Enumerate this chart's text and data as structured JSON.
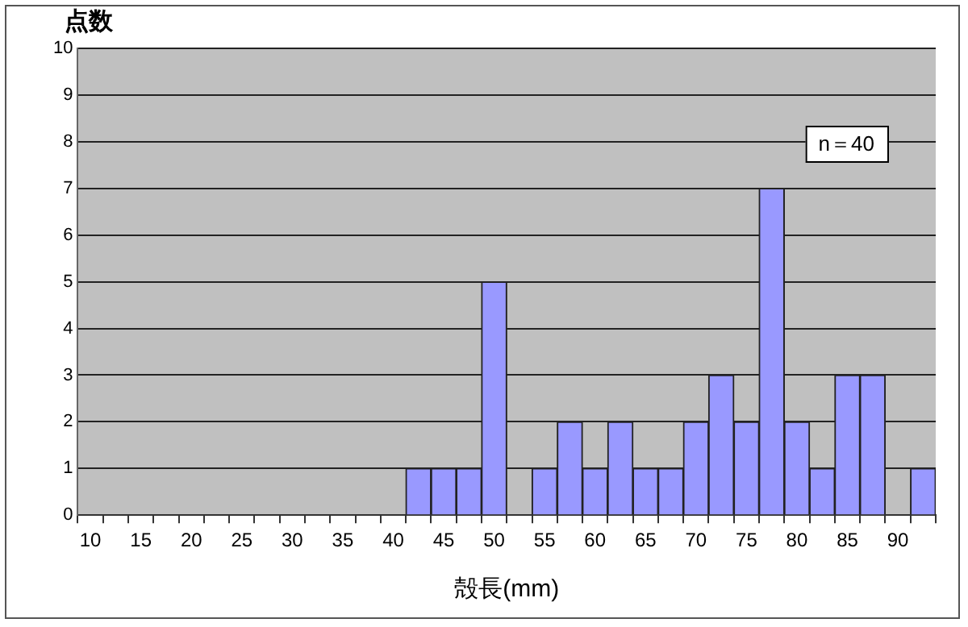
{
  "chart_data": {
    "type": "bar",
    "xlabel": "殻長(mm)",
    "ylabel": "点数",
    "categories": [
      "10",
      null,
      "15",
      null,
      "20",
      null,
      "25",
      null,
      "30",
      null,
      "35",
      null,
      "40",
      null,
      "45",
      null,
      "50",
      null,
      "55",
      null,
      "60",
      null,
      "65",
      null,
      "70",
      null,
      "75",
      null,
      "80",
      null,
      "85",
      null,
      "90",
      null
    ],
    "values": [
      0,
      0,
      0,
      0,
      0,
      0,
      0,
      0,
      0,
      0,
      0,
      0,
      0,
      1,
      1,
      1,
      5,
      0,
      1,
      2,
      1,
      2,
      1,
      1,
      2,
      3,
      2,
      7,
      2,
      1,
      3,
      3,
      0,
      1
    ],
    "color": "#9999ff",
    "ylim": [
      0,
      10
    ],
    "yticks": [
      0,
      1,
      2,
      3,
      4,
      5,
      6,
      7,
      8,
      9,
      10
    ],
    "grid": "y",
    "annotations": [
      "n＝40"
    ]
  }
}
